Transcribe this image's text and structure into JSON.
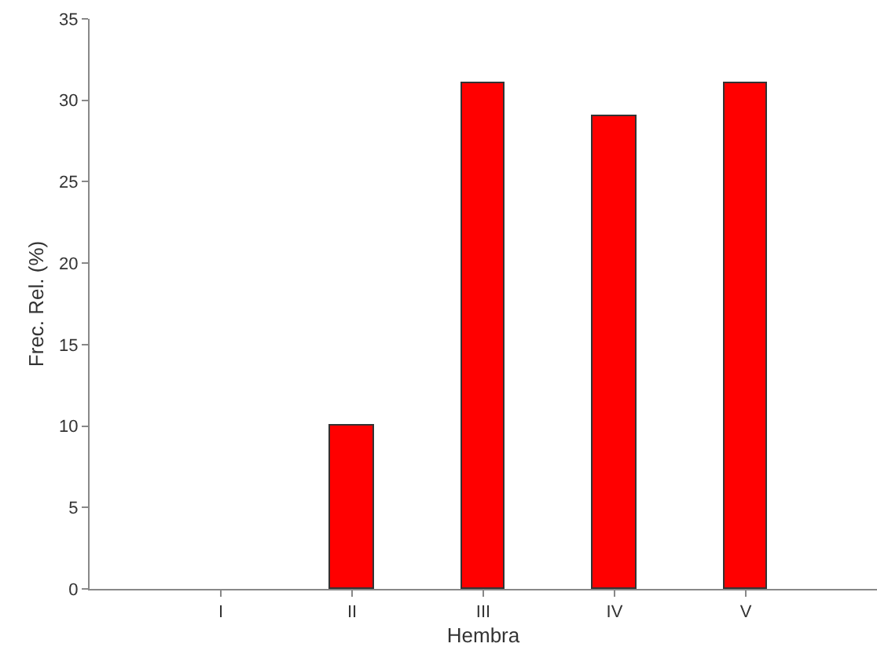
{
  "chart_data": {
    "type": "bar",
    "xlabel": "Hembra",
    "ylabel": "Frec. Rel. (%)",
    "categories": [
      "I",
      "II",
      "III",
      "IV",
      "V"
    ],
    "values": [
      null,
      10,
      31,
      29,
      31
    ],
    "color": "#ff0000",
    "ylim": [
      0,
      35
    ],
    "yticks": [
      0,
      5,
      10,
      15,
      20,
      25,
      30,
      35
    ]
  }
}
